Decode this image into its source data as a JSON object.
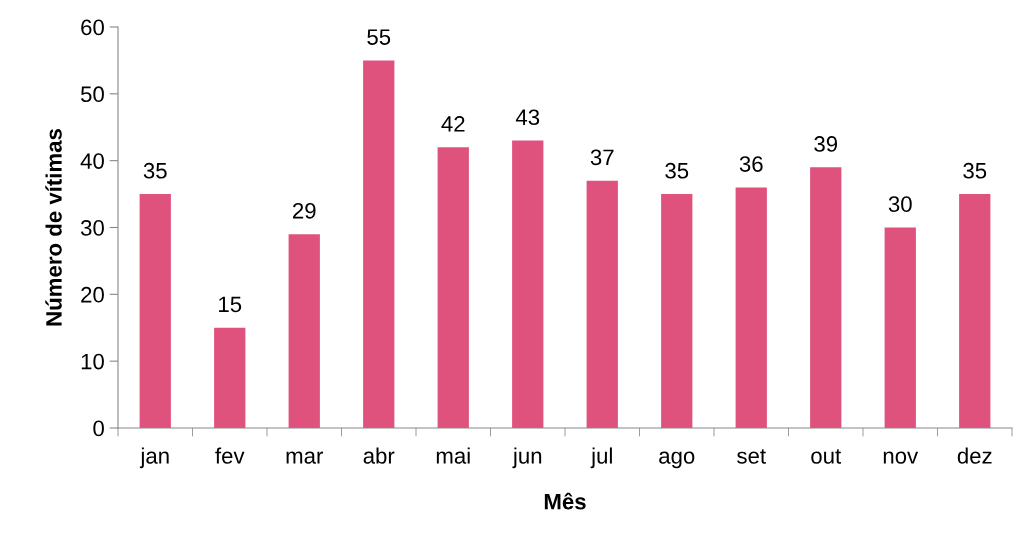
{
  "chart_data": {
    "type": "bar",
    "xlabel": "Mês",
    "ylabel": "Número de vítimas",
    "categories": [
      "jan",
      "fev",
      "mar",
      "abr",
      "mai",
      "jun",
      "jul",
      "ago",
      "set",
      "out",
      "nov",
      "dez"
    ],
    "values": [
      35,
      15,
      29,
      55,
      42,
      43,
      37,
      35,
      36,
      39,
      30,
      35
    ],
    "color": "#e0527e",
    "ylim": [
      0,
      60
    ],
    "yticks": [
      0,
      10,
      20,
      30,
      40,
      50,
      60
    ],
    "grid": false,
    "data_labels": true
  }
}
